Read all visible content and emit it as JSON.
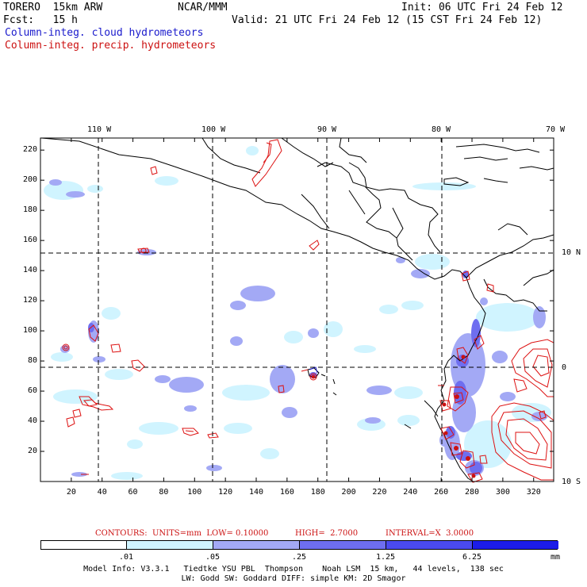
{
  "header": {
    "model_id": "TORERO  15km ARW",
    "center": "NCAR/MMM",
    "init": "Init: 06 UTC Fri 24 Feb 12",
    "fcst": "Fcst:   15 h",
    "valid": "Valid: 21 UTC Fri 24 Feb 12 (15 CST Fri 24 Feb 12)",
    "field1": "Column-integ. cloud hydrometeors",
    "field2": "Column-integ. precip. hydrometeors"
  },
  "map": {
    "top_lon_labels": [
      "110 W",
      "100 W",
      "90 W",
      "80 W",
      "70 W"
    ],
    "right_lat_labels": [
      "10 N",
      "0",
      "10 S"
    ],
    "y_ticks": [
      "220",
      "200",
      "180",
      "160",
      "140",
      "120",
      "100",
      "80",
      "60",
      "40",
      "20"
    ],
    "x_ticks": [
      "20",
      "40",
      "60",
      "80",
      "100",
      "120",
      "140",
      "160",
      "180",
      "200",
      "220",
      "240",
      "260",
      "280",
      "300",
      "320"
    ],
    "x_grid_range": [
      0,
      333
    ],
    "y_grid_range": [
      0,
      228
    ]
  },
  "contours": {
    "units": "CONTOURS:  UNITS=mm  LOW= 0.10000",
    "high": "HIGH=  2.7000",
    "interval": "INTERVAL=X  3.0000"
  },
  "colorbar": {
    "labels": [
      ".01",
      ".05",
      ".25",
      "1.25",
      "6.25"
    ],
    "unit": "mm",
    "colors": [
      "#ffffff",
      "#d0f4ff",
      "#a3a9f5",
      "#6e6ef0",
      "#4a4aee",
      "#1c1ce8"
    ]
  },
  "footer": {
    "line1": "Model Info: V3.3.1   Tiedtke YSU PBL  Thompson    Noah LSM  15 km,   44 levels,  138 sec",
    "line2": "LW: Godd SW: Goddard DIFF: simple KM: 2D Smagor"
  }
}
